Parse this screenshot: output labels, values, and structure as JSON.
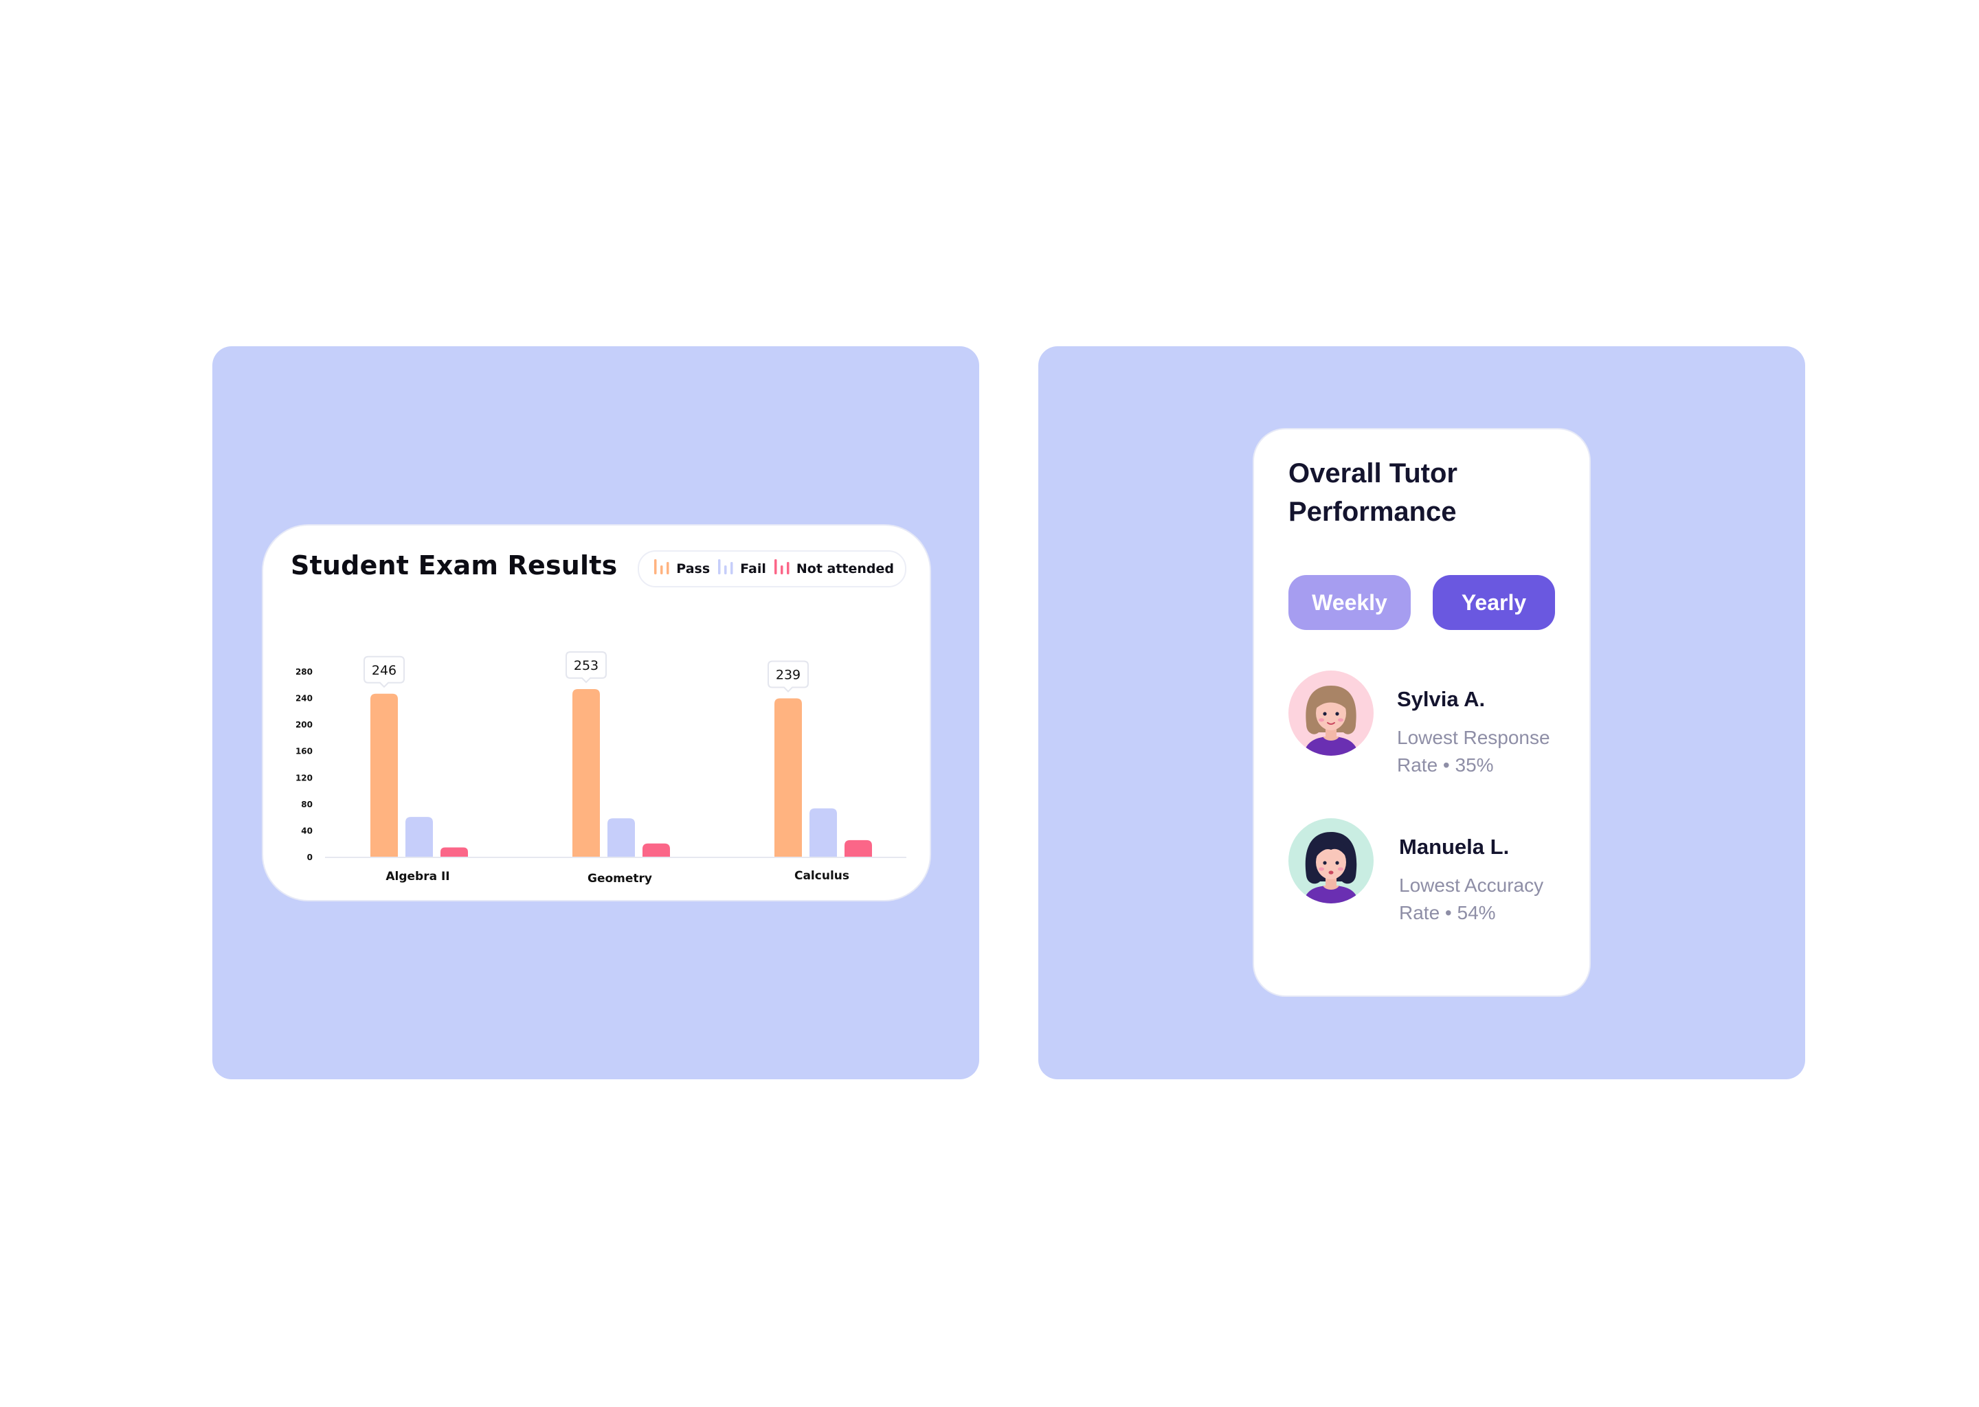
{
  "exam_card": {
    "title": "Student Exam Results",
    "legend": [
      {
        "label": "Pass",
        "color": "#ffb380",
        "icon": "bar-chart-icon"
      },
      {
        "label": "Fail",
        "color": "#c6cefa",
        "icon": "bar-chart-icon"
      },
      {
        "label": "Not attended",
        "color": "#fb6688",
        "icon": "bar-chart-icon"
      }
    ]
  },
  "chart_data": {
    "type": "bar",
    "title": "Student Exam Results",
    "categories": [
      "Algebra II",
      "Geometry",
      "Calculus"
    ],
    "series": [
      {
        "name": "Pass",
        "color": "#ffb380",
        "values": [
          246,
          253,
          239
        ]
      },
      {
        "name": "Fail",
        "color": "#c6cefa",
        "values": [
          60,
          58,
          73
        ]
      },
      {
        "name": "Not attended",
        "color": "#fb6688",
        "values": [
          14,
          20,
          25
        ]
      }
    ],
    "data_labels": [
      "246",
      "253",
      "239"
    ],
    "yticks": [
      0,
      40,
      80,
      120,
      160,
      200,
      240,
      280
    ],
    "ylim": [
      0,
      280
    ],
    "grid": false,
    "legend_position": "top-right"
  },
  "tutor_card": {
    "title": "Overall Tutor Performance",
    "toggles": {
      "weekly": "Weekly",
      "yearly": "Yearly",
      "selected": "Yearly"
    },
    "tutors": [
      {
        "name": "Sylvia A.",
        "stat": "Lowest Response Rate • 35%",
        "avatar_bg": "#fdd4de",
        "hair": "#a98466"
      },
      {
        "name": "Manuela L.",
        "stat": "Lowest Accuracy Rate • 54%",
        "avatar_bg": "#c9ede2",
        "hair": "#1c1f3e"
      }
    ]
  }
}
